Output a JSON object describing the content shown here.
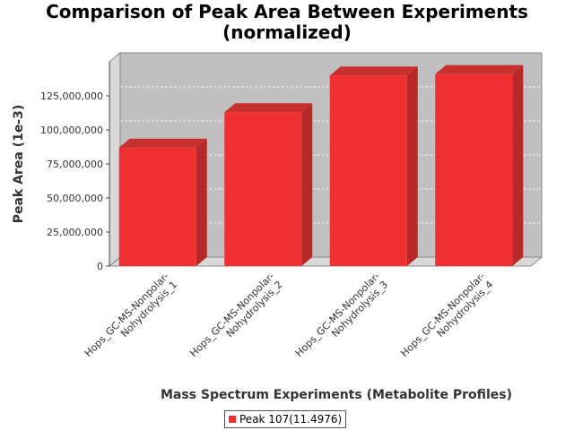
{
  "chart_data": {
    "type": "bar",
    "title_line1": "Comparison of Peak Area Between Experiments",
    "title_line2": "(normalized)",
    "xlabel": "Mass Spectrum Experiments (Metabolite Profiles)",
    "ylabel": "Peak Area (1e-3)",
    "categories": [
      [
        "Hops_GC-MS-Nonpolar-",
        "Nohydrolysis_1"
      ],
      [
        "Hops_GC-MS-Nonpolar-",
        "Nohydrolysis_2"
      ],
      [
        "Hops_GC-MS-Nonpolar-",
        "Nohydrolysis_3"
      ],
      [
        "Hops_GC-MS-Nonpolar-",
        "Nohydrolysis_4"
      ]
    ],
    "series": [
      {
        "name": "Peak 107(11.4976)",
        "color": "#f03030",
        "values": [
          87000000,
          113000000,
          140000000,
          141000000
        ]
      }
    ],
    "y_ticks": [
      0,
      25000000,
      50000000,
      75000000,
      100000000,
      125000000
    ],
    "y_tick_labels": [
      "0",
      "25,000,000",
      "50,000,000",
      "75,000,000",
      "100,000,000",
      "125,000,000"
    ],
    "ylim": [
      0,
      150000000
    ],
    "grid": true,
    "three_d": true,
    "legend_position": "bottom-center",
    "plot_background": "#c0c0c0"
  }
}
